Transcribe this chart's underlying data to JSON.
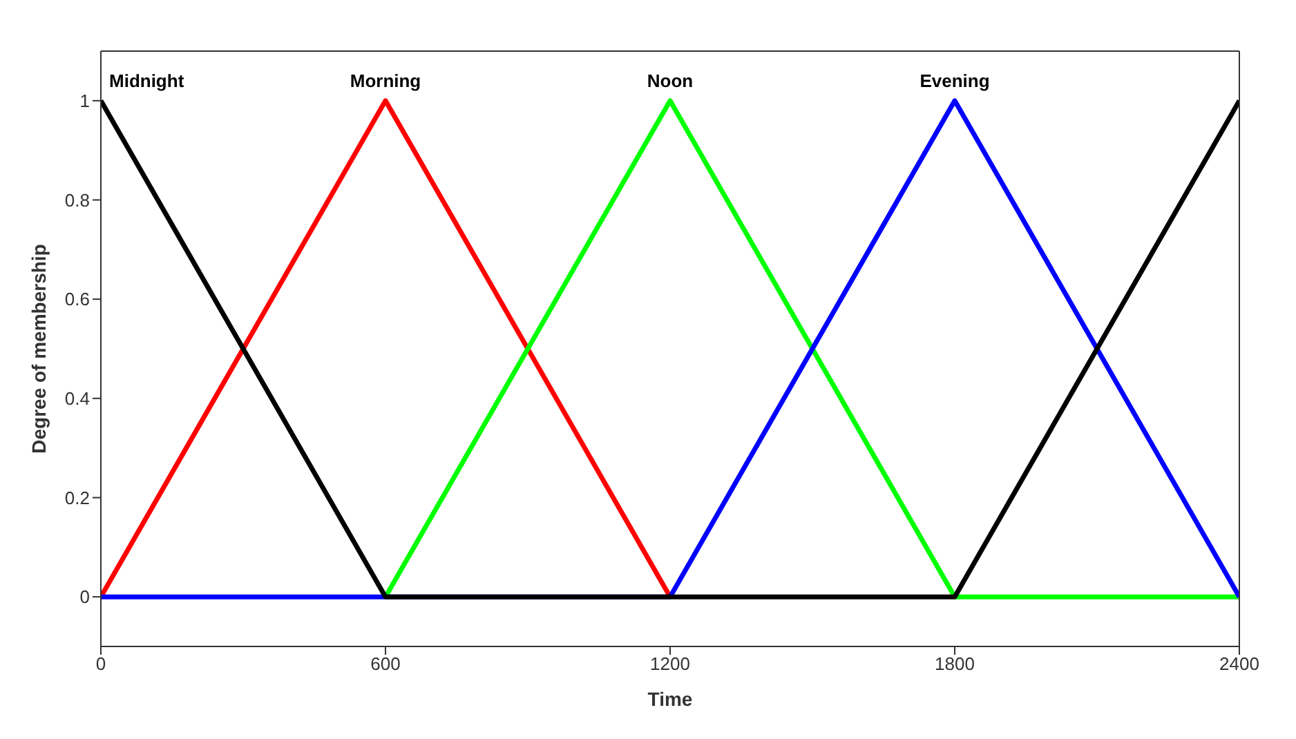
{
  "chart_data": {
    "type": "line",
    "xlabel": "Time",
    "ylabel": "Degree of membership",
    "xlim": [
      0,
      2400
    ],
    "xticks": [
      0,
      600,
      1200,
      1800,
      2400
    ],
    "ylim": [
      -0.1,
      1.1
    ],
    "yticks": [
      0,
      0.2,
      0.4,
      0.6,
      0.8,
      1
    ],
    "marker": "none",
    "line_style": "solid",
    "series": [
      {
        "name": "Morning",
        "color": "#ff0000",
        "x": [
          0,
          600,
          1200
        ],
        "values": [
          0,
          1,
          0
        ]
      },
      {
        "name": "Noon",
        "color": "#00ff00",
        "x": [
          600,
          1200,
          1800,
          2400
        ],
        "values": [
          0,
          1,
          0,
          0
        ]
      },
      {
        "name": "Evening",
        "color": "#0000ff",
        "x": [
          0,
          1200,
          1800,
          2400
        ],
        "values": [
          0,
          0,
          1,
          0
        ]
      },
      {
        "name": "Midnight",
        "color": "#000000",
        "x": [
          0,
          600,
          1800,
          2400
        ],
        "values": [
          1,
          0,
          0,
          1
        ]
      }
    ]
  }
}
